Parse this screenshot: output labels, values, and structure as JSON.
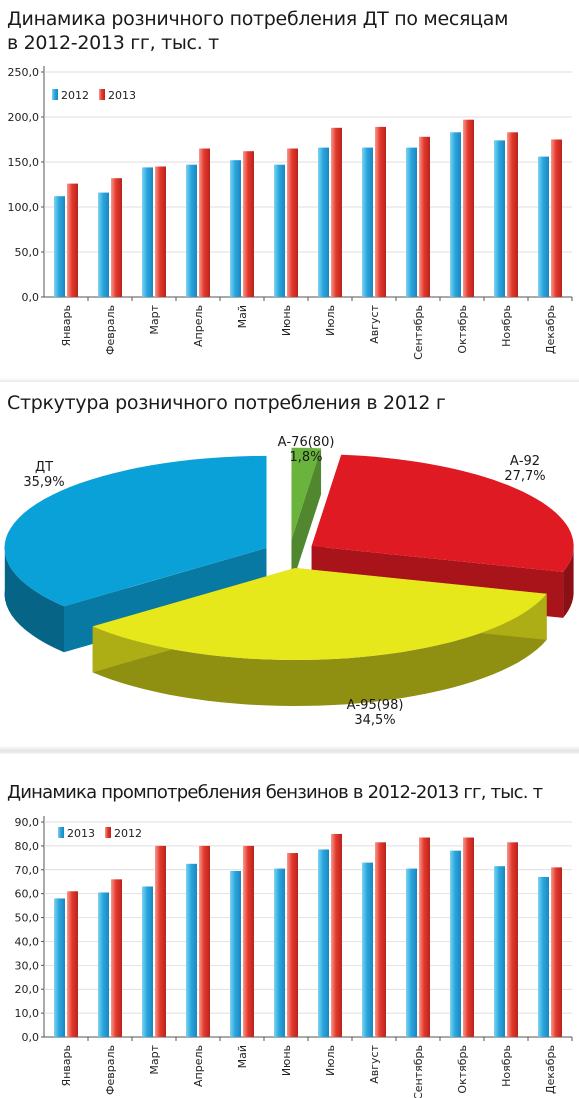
{
  "colors": {
    "blue": "#2aa7dd",
    "red": "#e43a2f",
    "pie_dt": "#0aa1d9",
    "pie_a92": "#e01a22",
    "pie_a95": "#e6e81c",
    "pie_a76": "#6ab43e"
  },
  "chart1": {
    "title_line1": "Динамика розничного потребления ДТ по месяцам",
    "title_line2": "в 2012-2013 гг, тыс. т",
    "chart_data": {
      "type": "bar",
      "categories": [
        "Январь",
        "Февраль",
        "Март",
        "Апрель",
        "Май",
        "Июнь",
        "Июль",
        "Август",
        "Сентябрь",
        "Октябрь",
        "Ноябрь",
        "Декабрь"
      ],
      "series": [
        {
          "name": "2012",
          "values": [
            112,
            116,
            144,
            147,
            152,
            147,
            166,
            166,
            166,
            183,
            174,
            156
          ]
        },
        {
          "name": "2013",
          "values": [
            126,
            132,
            145,
            165,
            162,
            165,
            188,
            189,
            178,
            197,
            183,
            175
          ]
        }
      ],
      "yticks": [
        "0,0",
        "50,0",
        "100,0",
        "150,0",
        "200,0",
        "250,0"
      ],
      "ylim": [
        0,
        250
      ],
      "legend": "top-left"
    }
  },
  "chart2": {
    "title": "Стркутура розничного потребления в 2012 г",
    "chart_data": {
      "type": "pie",
      "slices": [
        {
          "name": "ДТ",
          "value_label": "35,9%",
          "value": 35.9
        },
        {
          "name": "А-76(80)",
          "value_label": "1,8%",
          "value": 1.8
        },
        {
          "name": "А-92",
          "value_label": "27,7%",
          "value": 27.7
        },
        {
          "name": "А-95(98)",
          "value_label": "34,5%",
          "value": 34.5
        }
      ]
    }
  },
  "chart3": {
    "title": "Динамика промпотребления бензинов в 2012-2013 гг, тыс. т",
    "chart_data": {
      "type": "bar",
      "categories": [
        "Январь",
        "Февраль",
        "Март",
        "Апрель",
        "Май",
        "Июнь",
        "Июль",
        "Август",
        "Сентябрь",
        "Октябрь",
        "Ноябрь",
        "Декабрь"
      ],
      "series": [
        {
          "name": "2013",
          "values": [
            58,
            60.5,
            63,
            72.5,
            69.5,
            70.5,
            78.5,
            73,
            70.5,
            78,
            71.5,
            67
          ]
        },
        {
          "name": "2012",
          "values": [
            61,
            66,
            80,
            80,
            80,
            77,
            85,
            81.5,
            83.5,
            83.5,
            81.5,
            71
          ]
        }
      ],
      "yticks": [
        "0,0",
        "10,0",
        "20,0",
        "30,0",
        "40,0",
        "50,0",
        "60,0",
        "70,0",
        "80,0",
        "90,0"
      ],
      "ylim": [
        0,
        90
      ],
      "legend": "top-left"
    }
  }
}
